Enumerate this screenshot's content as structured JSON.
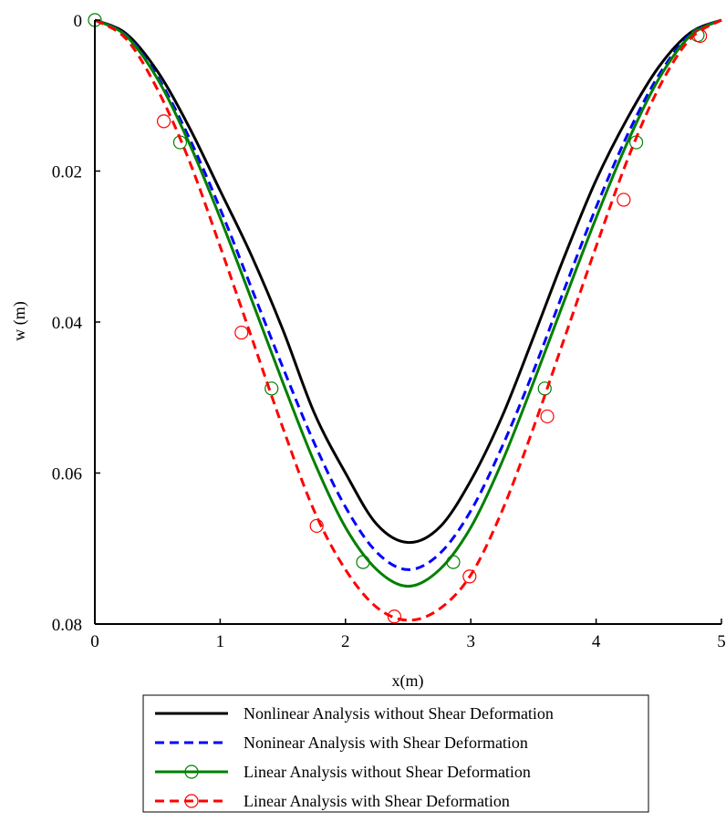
{
  "chart_data": {
    "type": "line",
    "xlabel": "x(m)",
    "ylabel": "w (m)",
    "xlim": [
      0,
      5
    ],
    "ylim": [
      0,
      0.08
    ],
    "y_inverted": true,
    "grid": false,
    "legend_position": "bottom",
    "xticks": [
      "0",
      "1",
      "2",
      "3",
      "4",
      "5"
    ],
    "yticks": [
      "0",
      "0.02",
      "0.04",
      "0.06",
      "0.08"
    ],
    "series": [
      {
        "name": "Nonlinear Analysis without Shear Deformation",
        "color": "#000000",
        "dash": "solid",
        "marker": "none",
        "x": [
          0,
          0.25,
          0.5,
          0.75,
          1.0,
          1.25,
          1.5,
          1.75,
          2.0,
          2.25,
          2.5,
          2.75,
          3.0,
          3.25,
          3.5,
          3.75,
          4.0,
          4.25,
          4.5,
          4.75,
          5.0
        ],
        "y": [
          0,
          0.0018,
          0.0068,
          0.0141,
          0.0226,
          0.0312,
          0.041,
          0.052,
          0.06,
          0.0668,
          0.0692,
          0.0672,
          0.061,
          0.0525,
          0.042,
          0.0312,
          0.0212,
          0.013,
          0.0062,
          0.0017,
          0
        ]
      },
      {
        "name": "Noninear Analysis with Shear Deformation",
        "color": "#0000ff",
        "dash": "dashed",
        "marker": "none",
        "x": [
          0,
          0.25,
          0.5,
          0.75,
          1.0,
          1.25,
          1.5,
          1.75,
          2.0,
          2.25,
          2.5,
          2.75,
          3.0,
          3.25,
          3.5,
          3.75,
          4.0,
          4.25,
          4.5,
          4.75,
          5.0
        ],
        "y": [
          0,
          0.002,
          0.0075,
          0.0155,
          0.025,
          0.0355,
          0.046,
          0.056,
          0.0645,
          0.0705,
          0.0728,
          0.0707,
          0.065,
          0.0565,
          0.0465,
          0.0355,
          0.0248,
          0.0152,
          0.0073,
          0.0019,
          0
        ]
      },
      {
        "name": "Linear Analysis without Shear Deformation",
        "color": "#008000",
        "dash": "solid",
        "marker": "circle",
        "x": [
          0,
          0.25,
          0.5,
          0.75,
          1.0,
          1.25,
          1.5,
          1.75,
          2.0,
          2.25,
          2.5,
          2.75,
          3.0,
          3.25,
          3.5,
          3.75,
          4.0,
          4.25,
          4.5,
          4.75,
          5.0
        ],
        "y": [
          0,
          0.0021,
          0.0078,
          0.0162,
          0.0262,
          0.037,
          0.048,
          0.0585,
          0.0672,
          0.0728,
          0.075,
          0.0728,
          0.0672,
          0.0585,
          0.048,
          0.037,
          0.0262,
          0.0162,
          0.0078,
          0.0021,
          0
        ],
        "marker_x": [
          0,
          0.68,
          1.41,
          2.14,
          2.86,
          3.59,
          4.32,
          4.81
        ],
        "marker_y": [
          0,
          0.0162,
          0.0488,
          0.0718,
          0.0718,
          0.0488,
          0.0162,
          0.002
        ]
      },
      {
        "name": "Linear Analysis with Shear Deformation",
        "color": "#ff0000",
        "dash": "dashed",
        "marker": "circle",
        "x": [
          0,
          0.25,
          0.5,
          0.75,
          1.0,
          1.25,
          1.5,
          1.75,
          2.0,
          2.25,
          2.5,
          2.75,
          3.0,
          3.25,
          3.5,
          3.75,
          4.0,
          4.25,
          4.5,
          4.75,
          5.0
        ],
        "y": [
          0,
          0.0025,
          0.0092,
          0.0185,
          0.03,
          0.042,
          0.054,
          0.065,
          0.0728,
          0.0778,
          0.0795,
          0.078,
          0.0735,
          0.065,
          0.054,
          0.042,
          0.03,
          0.0185,
          0.009,
          0.0025,
          0
        ],
        "marker_x": [
          0.55,
          1.17,
          1.77,
          2.39,
          2.99,
          3.61,
          4.22,
          4.83
        ],
        "marker_y": [
          0.0134,
          0.0414,
          0.067,
          0.079,
          0.0737,
          0.0525,
          0.0238,
          0.0021
        ]
      }
    ]
  }
}
